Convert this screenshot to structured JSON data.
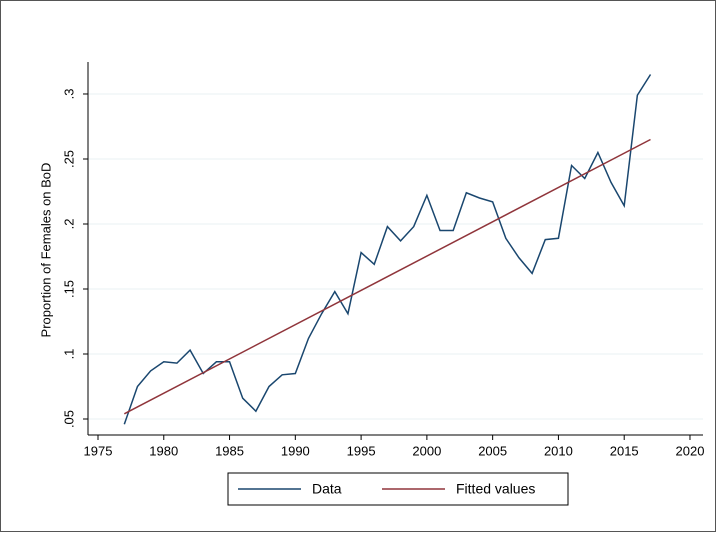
{
  "chart_data": {
    "type": "line",
    "y_label": "Proportion of Females on BoD",
    "xlim": [
      1974.24,
      2020.99
    ],
    "ylim": [
      0.0377,
      0.3246
    ],
    "xticks": [
      1975,
      1980,
      1985,
      1990,
      1995,
      2000,
      2005,
      2010,
      2015,
      2020
    ],
    "yticks": [
      {
        "value": 0.05,
        "label": ".05"
      },
      {
        "value": 0.1,
        "label": ".1"
      },
      {
        "value": 0.15,
        "label": ".15"
      },
      {
        "value": 0.2,
        "label": ".2"
      },
      {
        "value": 0.25,
        "label": ".25"
      },
      {
        "value": 0.3,
        "label": ".3"
      }
    ],
    "grid": true,
    "series": [
      {
        "name": "Data",
        "color": "#1a476f",
        "x": [
          1977,
          1978,
          1979,
          1980,
          1981,
          1982,
          1983,
          1984,
          1985,
          1986,
          1987,
          1988,
          1989,
          1990,
          1991,
          1992,
          1993,
          1994,
          1995,
          1996,
          1997,
          1998,
          1999,
          2000,
          2001,
          2002,
          2003,
          2004,
          2005,
          2006,
          2007,
          2008,
          2009,
          2010,
          2011,
          2012,
          2013,
          2014,
          2015,
          2016,
          2017
        ],
        "values": [
          0.046,
          0.075,
          0.087,
          0.094,
          0.093,
          0.103,
          0.085,
          0.094,
          0.094,
          0.066,
          0.056,
          0.075,
          0.084,
          0.085,
          0.112,
          0.131,
          0.148,
          0.131,
          0.178,
          0.169,
          0.198,
          0.187,
          0.198,
          0.222,
          0.195,
          0.195,
          0.224,
          0.22,
          0.217,
          0.189,
          0.174,
          0.162,
          0.188,
          0.189,
          0.245,
          0.235,
          0.255,
          0.232,
          0.214,
          0.299,
          0.315
        ]
      },
      {
        "name": "Fitted values",
        "color": "#90353b",
        "x": [
          1977,
          2017
        ],
        "values": [
          0.054,
          0.265
        ]
      }
    ]
  }
}
